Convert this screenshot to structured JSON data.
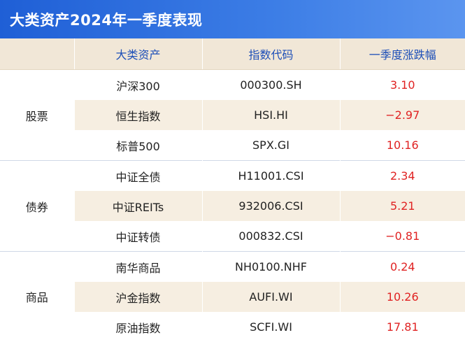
{
  "title": "大类资产2024年一季度表现",
  "headers": {
    "group": "",
    "name": "大类资产",
    "code": "指数代码",
    "change": "一季度涨跌幅"
  },
  "groups": [
    {
      "label": "股票",
      "rows": [
        {
          "name": "沪深300",
          "code": "000300.SH",
          "change": "3.10"
        },
        {
          "name": "恒生指数",
          "code": "HSI.HI",
          "change": "−2.97"
        },
        {
          "name": "标普500",
          "code": "SPX.GI",
          "change": "10.16"
        }
      ]
    },
    {
      "label": "债券",
      "rows": [
        {
          "name": "中证全债",
          "code": "H11001.CSI",
          "change": "2.34"
        },
        {
          "name": "中证REITs",
          "code": "932006.CSI",
          "change": "5.21"
        },
        {
          "name": "中证转债",
          "code": "000832.CSI",
          "change": "−0.81"
        }
      ]
    },
    {
      "label": "商品",
      "rows": [
        {
          "name": "南华商品",
          "code": "NH0100.NHF",
          "change": "0.24"
        },
        {
          "name": "沪金指数",
          "code": "AUFI.WI",
          "change": "10.26"
        },
        {
          "name": "原油指数",
          "code": "SCFI.WI",
          "change": "17.81"
        }
      ]
    }
  ],
  "colors": {
    "title_bar": "#2f6fe0",
    "header_bg": "#f1e7d7",
    "header_text": "#1d4fb8",
    "shade_row": "#f6eee1",
    "change_text": "#e02323"
  }
}
